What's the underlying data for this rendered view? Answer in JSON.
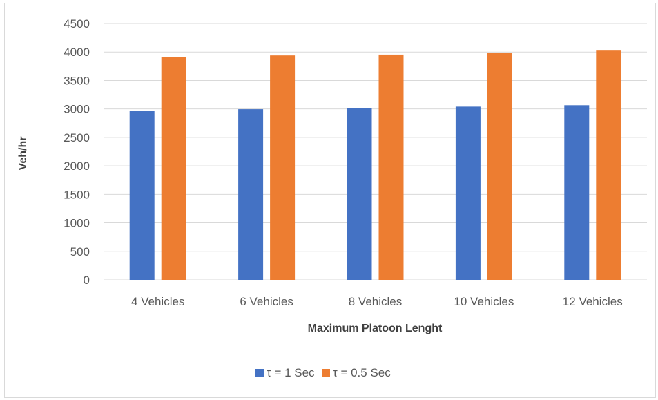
{
  "chart_data": {
    "type": "bar",
    "title": "",
    "xlabel": "Maximum Platoon Lenght",
    "ylabel": "Veh/hr",
    "categories": [
      "4 Vehicles",
      "6 Vehicles",
      "8 Vehicles",
      "10 Vehicles",
      "12 Vehicles"
    ],
    "series": [
      {
        "name": "τ = 1 Sec",
        "color": "#4472c4",
        "values": [
          2965,
          2995,
          3015,
          3040,
          3065
        ]
      },
      {
        "name": "τ = 0.5 Sec",
        "color": "#ed7d31",
        "values": [
          3910,
          3940,
          3955,
          3990,
          4025
        ]
      }
    ],
    "ylim": [
      0,
      4500
    ],
    "yticks": [
      0,
      500,
      1000,
      1500,
      2000,
      2500,
      3000,
      3500,
      4000,
      4500
    ],
    "grid": true,
    "legend_position": "bottom"
  }
}
